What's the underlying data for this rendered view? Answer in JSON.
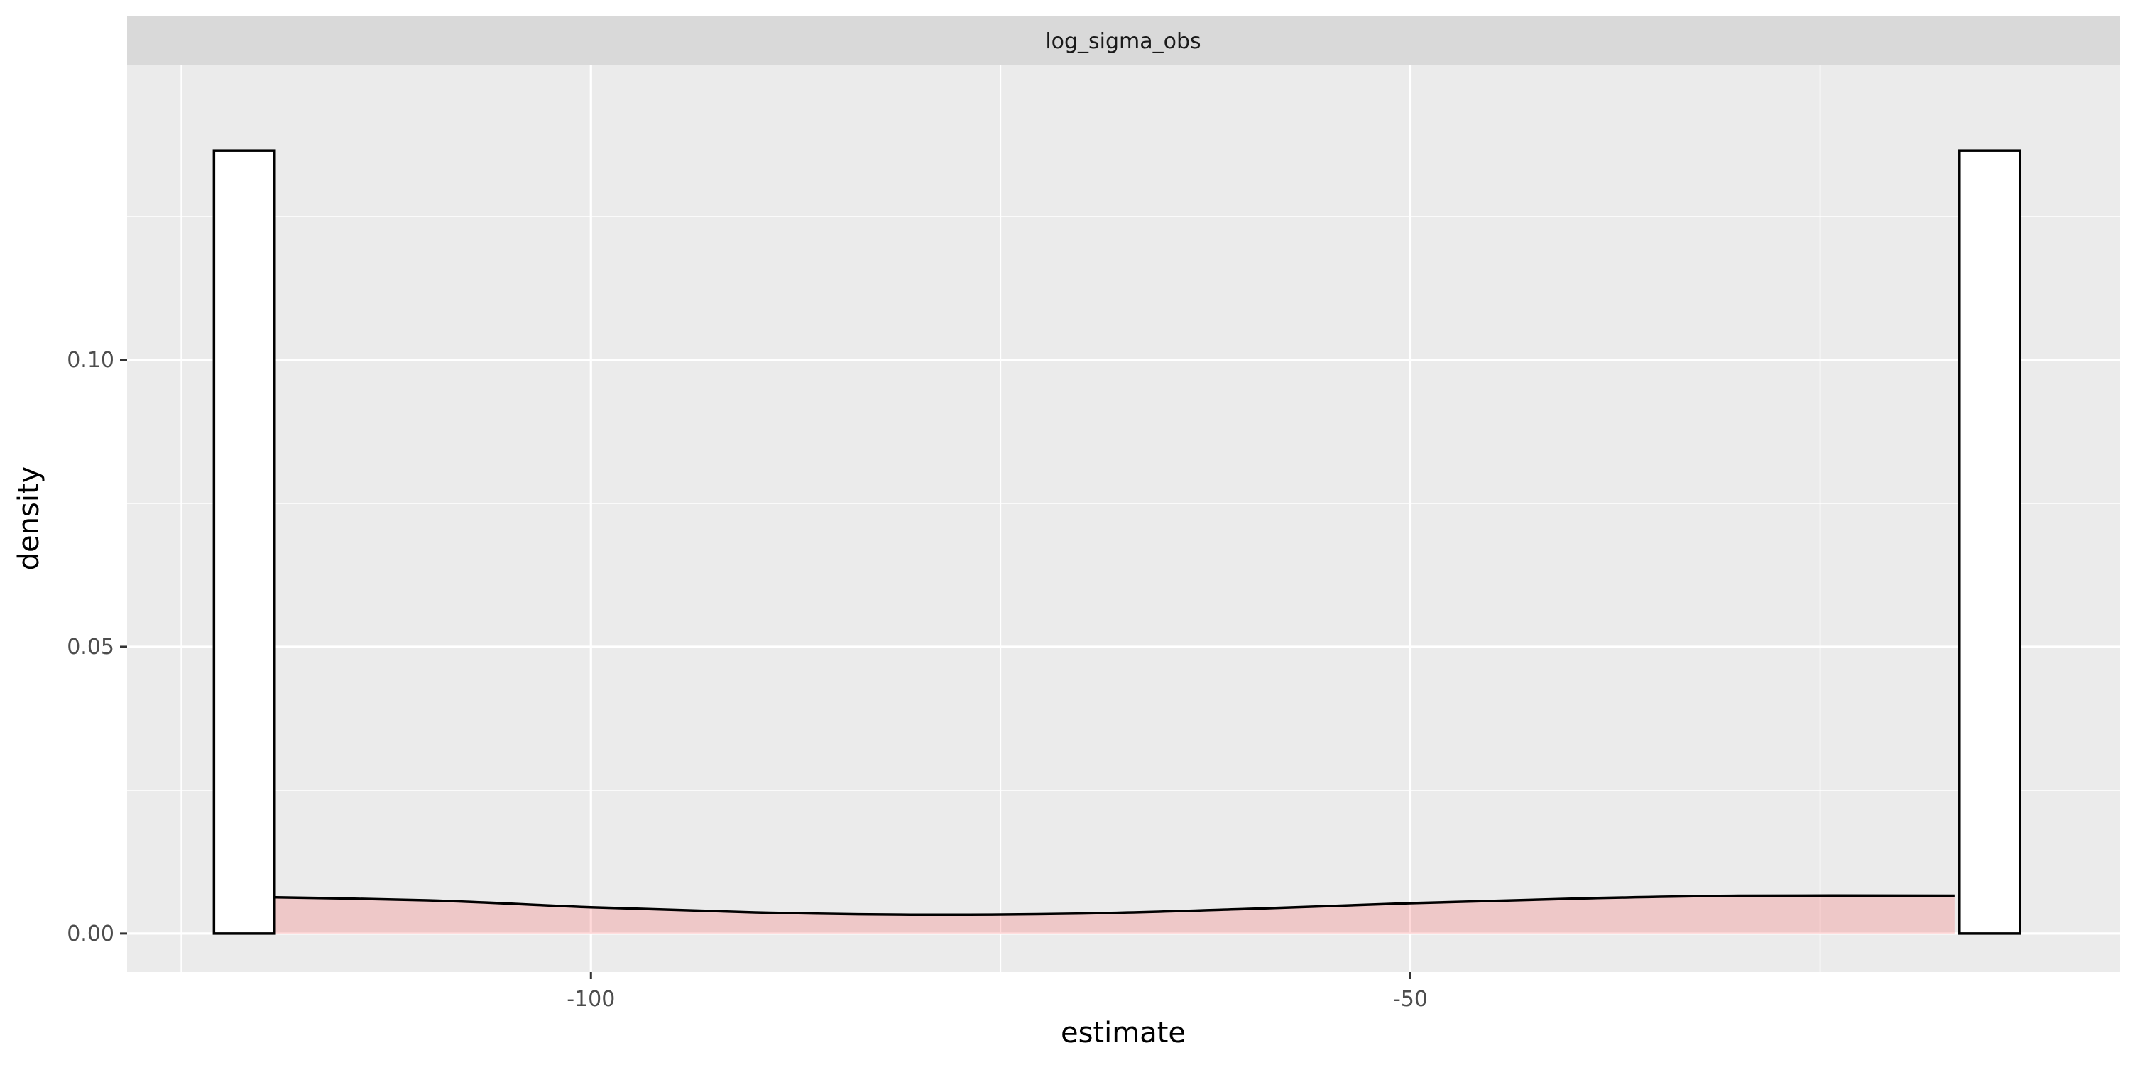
{
  "chart_data": {
    "type": "bar",
    "facet_label": "log_sigma_obs",
    "xlabel": "estimate",
    "ylabel": "density",
    "xlim": [
      -128.3,
      -6.7
    ],
    "ylim": [
      -0.0067,
      0.1515
    ],
    "x_ticks": [
      -100,
      -50
    ],
    "x_tick_labels": [
      "-100",
      "-50"
    ],
    "x_minor_ticks": [
      -125,
      -75,
      -25
    ],
    "y_ticks": [
      0.0,
      0.05,
      0.1
    ],
    "y_tick_labels": [
      "0.00",
      "0.05",
      "0.10"
    ],
    "y_minor_ticks": [
      0.025,
      0.075,
      0.125
    ],
    "grid": true,
    "histogram": {
      "bars": [
        {
          "xmin": -123.0,
          "xmax": -119.3,
          "density": 0.1365
        },
        {
          "xmin": -16.5,
          "xmax": -12.8,
          "density": 0.1365
        }
      ],
      "fill": "#ffffff",
      "stroke": "#000000"
    },
    "density_curve": {
      "x": [
        -122.6,
        -110,
        -100,
        -90,
        -80,
        -70,
        -60,
        -50,
        -40,
        -30,
        -16.8
      ],
      "y": [
        0.0065,
        0.0058,
        0.0046,
        0.0037,
        0.0033,
        0.0035,
        0.0043,
        0.0053,
        0.0061,
        0.0066,
        0.0066
      ],
      "fill": "#ff0000",
      "fill_opacity": 0.15,
      "stroke": "#000000"
    },
    "colors": {
      "panel_background": "#ebebeb",
      "strip_background": "#d9d9d9",
      "gridline": "#ffffff"
    }
  }
}
